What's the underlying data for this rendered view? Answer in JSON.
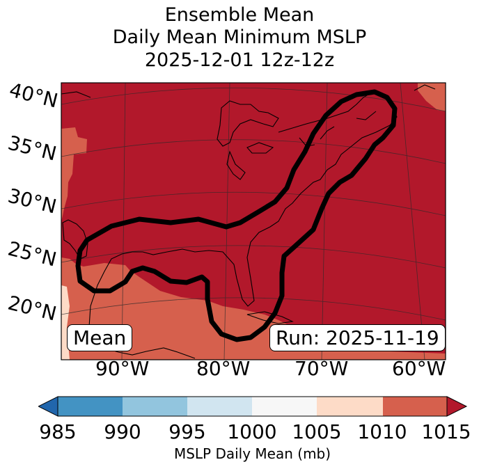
{
  "title": {
    "line1": "Ensemble Mean",
    "line2": "Daily Mean Minimum MSLP",
    "line3": "2025-12-01 12z-12z"
  },
  "map": {
    "lat_labels": [
      "40°N",
      "35°N",
      "30°N",
      "25°N",
      "20°N"
    ],
    "lon_labels": [
      "90°W",
      "80°W",
      "70°W",
      "60°W"
    ],
    "left_box": "Mean",
    "right_box": "Run: 2025-11-19",
    "fill_colors": {
      "gt_1015": "#b2182b",
      "1010_1015": "#d6604d",
      "1005_1010": "#fddbc7"
    },
    "contour_color": "#000000"
  },
  "colorbar": {
    "ticks": [
      "985",
      "990",
      "995",
      "1000",
      "1005",
      "1010",
      "1015"
    ],
    "bins": [
      {
        "range": "<985",
        "color": "#2166ac"
      },
      {
        "range": "985-990",
        "color": "#4393c3"
      },
      {
        "range": "990-995",
        "color": "#92c5de"
      },
      {
        "range": "995-1000",
        "color": "#d1e5f0"
      },
      {
        "range": "1000-1005",
        "color": "#f7f7f7"
      },
      {
        "range": "1005-1010",
        "color": "#fddbc7"
      },
      {
        "range": "1010-1015",
        "color": "#d6604d"
      },
      {
        "range": ">1015",
        "color": "#b2182b"
      }
    ],
    "label": "MSLP Daily Mean (mb)"
  }
}
